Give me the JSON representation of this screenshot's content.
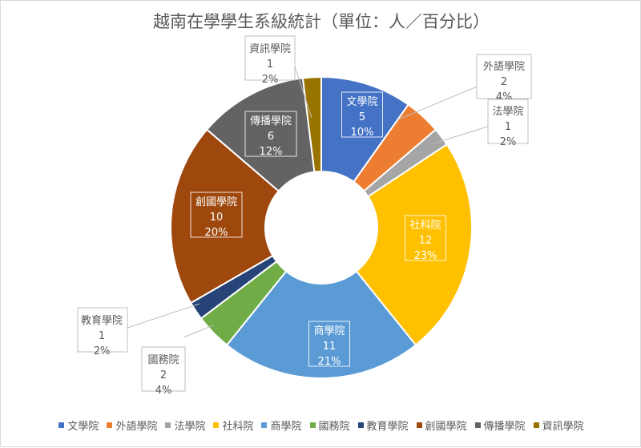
{
  "chart_data": {
    "type": "pie",
    "variant": "doughnut",
    "title": "越南在學學生系級統計（單位：人／百分比）",
    "legend_position": "bottom",
    "slices": [
      {
        "name": "文學院",
        "value": 5,
        "percent": "10%",
        "color": "#4472c4"
      },
      {
        "name": "外語學院",
        "value": 2,
        "percent": "4%",
        "color": "#ed7d31"
      },
      {
        "name": "法學院",
        "value": 1,
        "percent": "2%",
        "color": "#a5a5a5"
      },
      {
        "name": "社科院",
        "value": 12,
        "percent": "23%",
        "color": "#ffc000"
      },
      {
        "name": "商學院",
        "value": 11,
        "percent": "21%",
        "color": "#5b9bd5"
      },
      {
        "name": "國務院",
        "value": 2,
        "percent": "4%",
        "color": "#70ad47"
      },
      {
        "name": "教育學院",
        "value": 1,
        "percent": "2%",
        "color": "#264478"
      },
      {
        "name": "創國學院",
        "value": 10,
        "percent": "20%",
        "color": "#9e480e"
      },
      {
        "name": "傳播學院",
        "value": 6,
        "percent": "12%",
        "color": "#636363"
      },
      {
        "name": "資訊學院",
        "value": 1,
        "percent": "2%",
        "color": "#997300"
      }
    ]
  }
}
